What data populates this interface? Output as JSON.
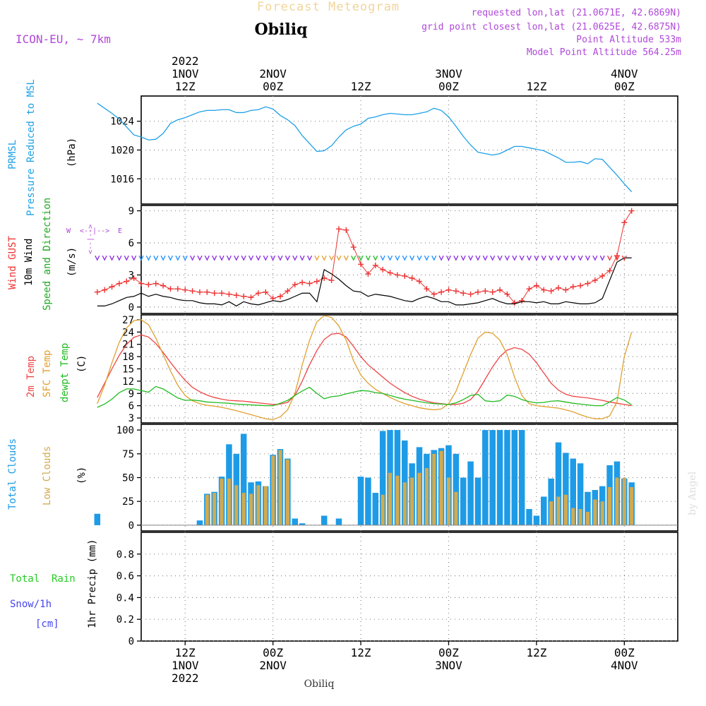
{
  "header": {
    "title": "Forecast Meteogram",
    "station": "Obiliq",
    "model": "ICON-EU, ~ 7km",
    "requested": "requested lon,lat (21.0671E, 42.6869N)",
    "grid_point": "grid point closest lon,lat (21.0625E, 42.6875N)",
    "point_altitude": "Point Altitude 533m",
    "model_altitude": "Model Point Altitude 564.25m",
    "footer_station": "Obiliq",
    "credit": "by Angel"
  },
  "time_axis": {
    "top_labels": [
      {
        "h": 12,
        "lines": [
          "2022",
          "1NOV",
          "12Z"
        ]
      },
      {
        "h": 24,
        "lines": [
          "2NOV",
          "00Z"
        ]
      },
      {
        "h": 36,
        "lines": [
          "12Z"
        ]
      },
      {
        "h": 48,
        "lines": [
          "3NOV",
          "00Z"
        ]
      },
      {
        "h": 60,
        "lines": [
          "12Z"
        ]
      },
      {
        "h": 72,
        "lines": [
          "4NOV",
          "00Z"
        ]
      }
    ],
    "bottom_labels": [
      {
        "h": 12,
        "lines": [
          "12Z",
          "1NOV",
          "2022"
        ]
      },
      {
        "h": 24,
        "lines": [
          "00Z",
          "2NOV"
        ]
      },
      {
        "h": 36,
        "lines": [
          "12Z"
        ]
      },
      {
        "h": 48,
        "lines": [
          "00Z",
          "3NOV"
        ]
      },
      {
        "h": 60,
        "lines": [
          "12Z"
        ]
      },
      {
        "h": 72,
        "lines": [
          "00Z",
          "4NOV"
        ]
      }
    ]
  },
  "panel_labels": {
    "pressure": {
      "name": "PRMSL",
      "desc": "Pressure Reduced to MSL",
      "unit": "(hPa)"
    },
    "wind": {
      "gust": "Wind GUST",
      "wind10": "10m Wind",
      "dir": "Speed and Direction",
      "unit": "(m/s)",
      "compass": {
        "n": "N",
        "s": "S",
        "w": "W",
        "e": "E",
        "up": "<--|-->",
        "side": "<--|-->"
      }
    },
    "temp": {
      "t2m": "2m Temp",
      "sfc": "SFC Temp",
      "dew": "dewpt Temp",
      "unit": "(C)"
    },
    "clouds": {
      "total": "Total Clouds",
      "low": "Low Clouds",
      "unit": "(%)"
    },
    "precip": {
      "rain": "Total  Rain",
      "snow": "Snow/1h",
      "snow_unit": "[cm]",
      "axis": "1hr Precip (mm)"
    }
  },
  "colors": {
    "pressure": "#1ea0e6",
    "gust": "#ee3333",
    "wind": "#000000",
    "temp2m": "#ee4444",
    "sfc": "#e0a030",
    "dew": "#22bb22",
    "total_cloud": "#1e9be6",
    "low_cloud": "#d2aa50",
    "rain": "#22cc22",
    "snow": "#4444ee",
    "title": "#f2d59a",
    "purple": "#b048d8",
    "grid": "#888888"
  },
  "chart_data": [
    {
      "type": "line",
      "name": "pressure",
      "x_hours_from": "2022-11-01 06Z",
      "yticks": [
        1016,
        1020,
        1024
      ],
      "ylim": [
        1012.5,
        1027.5
      ],
      "series": [
        {
          "name": "PRMSL",
          "values": [
            1026.5,
            1025.8,
            1025.1,
            1024.3,
            1023.2,
            1022.1,
            1021.8,
            1021.4,
            1021.5,
            1022.3,
            1023.7,
            1024.2,
            1024.5,
            1024.9,
            1025.3,
            1025.5,
            1025.5,
            1025.6,
            1025.6,
            1025.2,
            1025.2,
            1025.5,
            1025.6,
            1026.0,
            1025.7,
            1024.8,
            1024.2,
            1023.4,
            1022.0,
            1020.9,
            1019.8,
            1019.9,
            1020.6,
            1021.8,
            1022.8,
            1023.3,
            1023.6,
            1024.4,
            1024.6,
            1024.9,
            1025.1,
            1025.0,
            1024.9,
            1024.9,
            1025.1,
            1025.3,
            1025.8,
            1025.5,
            1024.6,
            1023.3,
            1021.9,
            1020.7,
            1019.7,
            1019.5,
            1019.3,
            1019.5,
            1020.0,
            1020.5,
            1020.5,
            1020.3,
            1020.1,
            1019.9,
            1019.4,
            1018.9,
            1018.3,
            1018.3,
            1018.4,
            1018.1,
            1018.8,
            1018.7,
            1017.6,
            1016.5,
            1015.3,
            1014.2
          ]
        }
      ]
    },
    {
      "type": "line",
      "name": "wind",
      "yticks": [
        0,
        3,
        6,
        9
      ],
      "ylim": [
        -0.6,
        9.5
      ],
      "series": [
        {
          "name": "Wind GUST",
          "values": [
            1.4,
            1.6,
            1.9,
            2.2,
            2.4,
            2.7,
            2.2,
            2.1,
            2.2,
            2.0,
            1.7,
            1.7,
            1.6,
            1.5,
            1.4,
            1.4,
            1.3,
            1.3,
            1.2,
            1.1,
            1.0,
            0.9,
            1.3,
            1.4,
            0.8,
            1.0,
            1.5,
            2.1,
            2.3,
            2.2,
            2.4,
            2.7,
            2.5,
            7.3,
            7.2,
            5.6,
            4.0,
            3.1,
            3.9,
            3.5,
            3.2,
            3.0,
            2.9,
            2.7,
            2.4,
            1.7,
            1.2,
            1.4,
            1.6,
            1.5,
            1.3,
            1.2,
            1.4,
            1.5,
            1.4,
            1.6,
            1.2,
            0.4,
            0.6,
            1.7,
            2.0,
            1.6,
            1.5,
            1.8,
            1.6,
            1.9,
            2.0,
            2.2,
            2.5,
            2.9,
            3.4,
            4.8,
            7.9,
            9.0
          ]
        },
        {
          "name": "10m Wind",
          "values": [
            0.1,
            0.1,
            0.3,
            0.6,
            0.9,
            1.0,
            1.3,
            1.0,
            1.2,
            1.0,
            0.9,
            0.7,
            0.6,
            0.6,
            0.4,
            0.3,
            0.3,
            0.2,
            0.5,
            0.1,
            0.5,
            0.3,
            0.2,
            0.4,
            0.6,
            0.5,
            0.7,
            1.0,
            1.3,
            1.3,
            0.5,
            3.5,
            3.1,
            2.6,
            2.0,
            1.5,
            1.4,
            1.0,
            1.2,
            1.1,
            1.0,
            0.8,
            0.6,
            0.5,
            0.8,
            1.0,
            0.8,
            0.5,
            0.5,
            0.2,
            0.2,
            0.3,
            0.4,
            0.6,
            0.8,
            0.5,
            0.3,
            0.3,
            0.5,
            0.5,
            0.4,
            0.5,
            0.3,
            0.3,
            0.5,
            0.4,
            0.3,
            0.3,
            0.4,
            0.8,
            2.5,
            4.2,
            4.6,
            4.6
          ]
        }
      ]
    },
    {
      "type": "line",
      "name": "temperature",
      "yticks": [
        3,
        6,
        9,
        12,
        15,
        18,
        21,
        24,
        27
      ],
      "ylim": [
        1.8,
        28.2
      ],
      "series": [
        {
          "name": "2m Temp",
          "values": [
            8.0,
            11.5,
            15.0,
            18.3,
            21.0,
            22.7,
            23.3,
            22.8,
            21.2,
            19.0,
            16.6,
            14.3,
            12.2,
            10.5,
            9.4,
            8.6,
            8.0,
            7.6,
            7.3,
            7.2,
            7.1,
            6.9,
            6.7,
            6.5,
            6.3,
            6.4,
            6.8,
            8.5,
            12.0,
            16.0,
            19.5,
            22.2,
            23.5,
            23.7,
            22.8,
            20.5,
            18.0,
            16.0,
            14.5,
            13.0,
            11.5,
            10.3,
            9.2,
            8.3,
            7.6,
            7.1,
            6.7,
            6.5,
            6.3,
            6.3,
            6.6,
            7.5,
            9.5,
            12.5,
            15.5,
            18.0,
            19.6,
            20.2,
            19.8,
            18.6,
            16.5,
            14.0,
            11.5,
            9.8,
            8.8,
            8.3,
            8.1,
            7.9,
            7.6,
            7.3,
            6.9,
            6.6,
            6.3,
            6.0
          ]
        },
        {
          "name": "SFC Temp",
          "values": [
            6.5,
            11.0,
            16.5,
            21.5,
            25.0,
            26.8,
            27.0,
            25.8,
            22.5,
            18.5,
            14.5,
            11.0,
            8.5,
            7.2,
            6.5,
            6.1,
            5.9,
            5.6,
            5.2,
            4.8,
            4.3,
            3.8,
            3.3,
            2.8,
            2.6,
            3.3,
            5.0,
            9.0,
            16.0,
            22.0,
            26.5,
            28.0,
            27.6,
            25.5,
            22.0,
            17.0,
            13.5,
            11.5,
            10.0,
            9.0,
            8.0,
            7.2,
            6.5,
            6.0,
            5.5,
            5.2,
            5.0,
            5.2,
            6.5,
            9.5,
            14.0,
            18.5,
            22.5,
            24.0,
            23.7,
            22.0,
            18.5,
            13.0,
            8.5,
            6.5,
            6.0,
            5.8,
            5.6,
            5.4,
            5.0,
            4.5,
            3.8,
            3.2,
            2.8,
            2.8,
            3.5,
            7.0,
            18.0,
            24.0
          ]
        },
        {
          "name": "dewpt Temp",
          "values": [
            5.6,
            6.4,
            7.6,
            9.2,
            10.1,
            10.1,
            9.7,
            9.3,
            10.7,
            10.1,
            9.0,
            7.9,
            7.3,
            7.4,
            7.2,
            6.9,
            6.8,
            6.7,
            6.6,
            6.4,
            6.3,
            6.2,
            6.1,
            6.0,
            6.0,
            6.6,
            7.3,
            8.5,
            9.6,
            10.5,
            9.0,
            7.7,
            8.2,
            8.4,
            8.9,
            9.3,
            9.7,
            9.6,
            9.2,
            9.0,
            8.5,
            8.0,
            7.6,
            7.3,
            7.0,
            6.7,
            6.5,
            6.4,
            6.3,
            6.7,
            7.5,
            8.5,
            8.8,
            7.2,
            7.0,
            7.2,
            8.6,
            8.3,
            7.5,
            7.0,
            6.7,
            6.8,
            7.1,
            7.2,
            6.9,
            6.6,
            6.4,
            6.2,
            6.0,
            6.0,
            6.9,
            8.0,
            7.4,
            6.2
          ]
        }
      ]
    },
    {
      "type": "bar",
      "name": "clouds",
      "yticks": [
        0,
        25,
        50,
        75,
        100
      ],
      "ylim": [
        -6,
        106
      ],
      "series": [
        {
          "name": "Total Clouds",
          "values": [
            12,
            0,
            0,
            0,
            0,
            0,
            0,
            0,
            0,
            0,
            0,
            0,
            0,
            0,
            5,
            33,
            35,
            51,
            85,
            75,
            96,
            45,
            46,
            41,
            74,
            80,
            70,
            7,
            2,
            0,
            0,
            10,
            0,
            7,
            0,
            0,
            51,
            50,
            34,
            99,
            100,
            100,
            89,
            65,
            82,
            75,
            79,
            81,
            84,
            75,
            50,
            67,
            50,
            100,
            100,
            100,
            100,
            100,
            100,
            17,
            10,
            30,
            49,
            87,
            76,
            70,
            65,
            35,
            37,
            41,
            63,
            67,
            49,
            45
          ]
        },
        {
          "name": "Low Clouds",
          "values": [
            0,
            0,
            0,
            0,
            0,
            0,
            0,
            0,
            0,
            0,
            0,
            0,
            0,
            0,
            0,
            32,
            34,
            49,
            49,
            42,
            34,
            33,
            42,
            41,
            73,
            79,
            69,
            0,
            0,
            0,
            0,
            0,
            0,
            0,
            0,
            0,
            0,
            0,
            0,
            32,
            55,
            52,
            45,
            50,
            55,
            60,
            75,
            78,
            50,
            35,
            0,
            0,
            0,
            0,
            0,
            0,
            0,
            0,
            0,
            0,
            0,
            0,
            25,
            30,
            32,
            18,
            17,
            14,
            27,
            25,
            40,
            50,
            50,
            40
          ]
        }
      ]
    },
    {
      "type": "line",
      "name": "precipitation",
      "yticks": [
        0,
        0.2,
        0.4,
        0.6,
        0.8
      ],
      "yticklabels": [
        "0",
        "0.2",
        "0.4",
        "0.6",
        "0.8"
      ],
      "ylim": [
        0,
        1.0
      ],
      "series": [
        {
          "name": "Total Rain",
          "values": []
        },
        {
          "name": "Snow/1h",
          "values": []
        }
      ]
    }
  ]
}
